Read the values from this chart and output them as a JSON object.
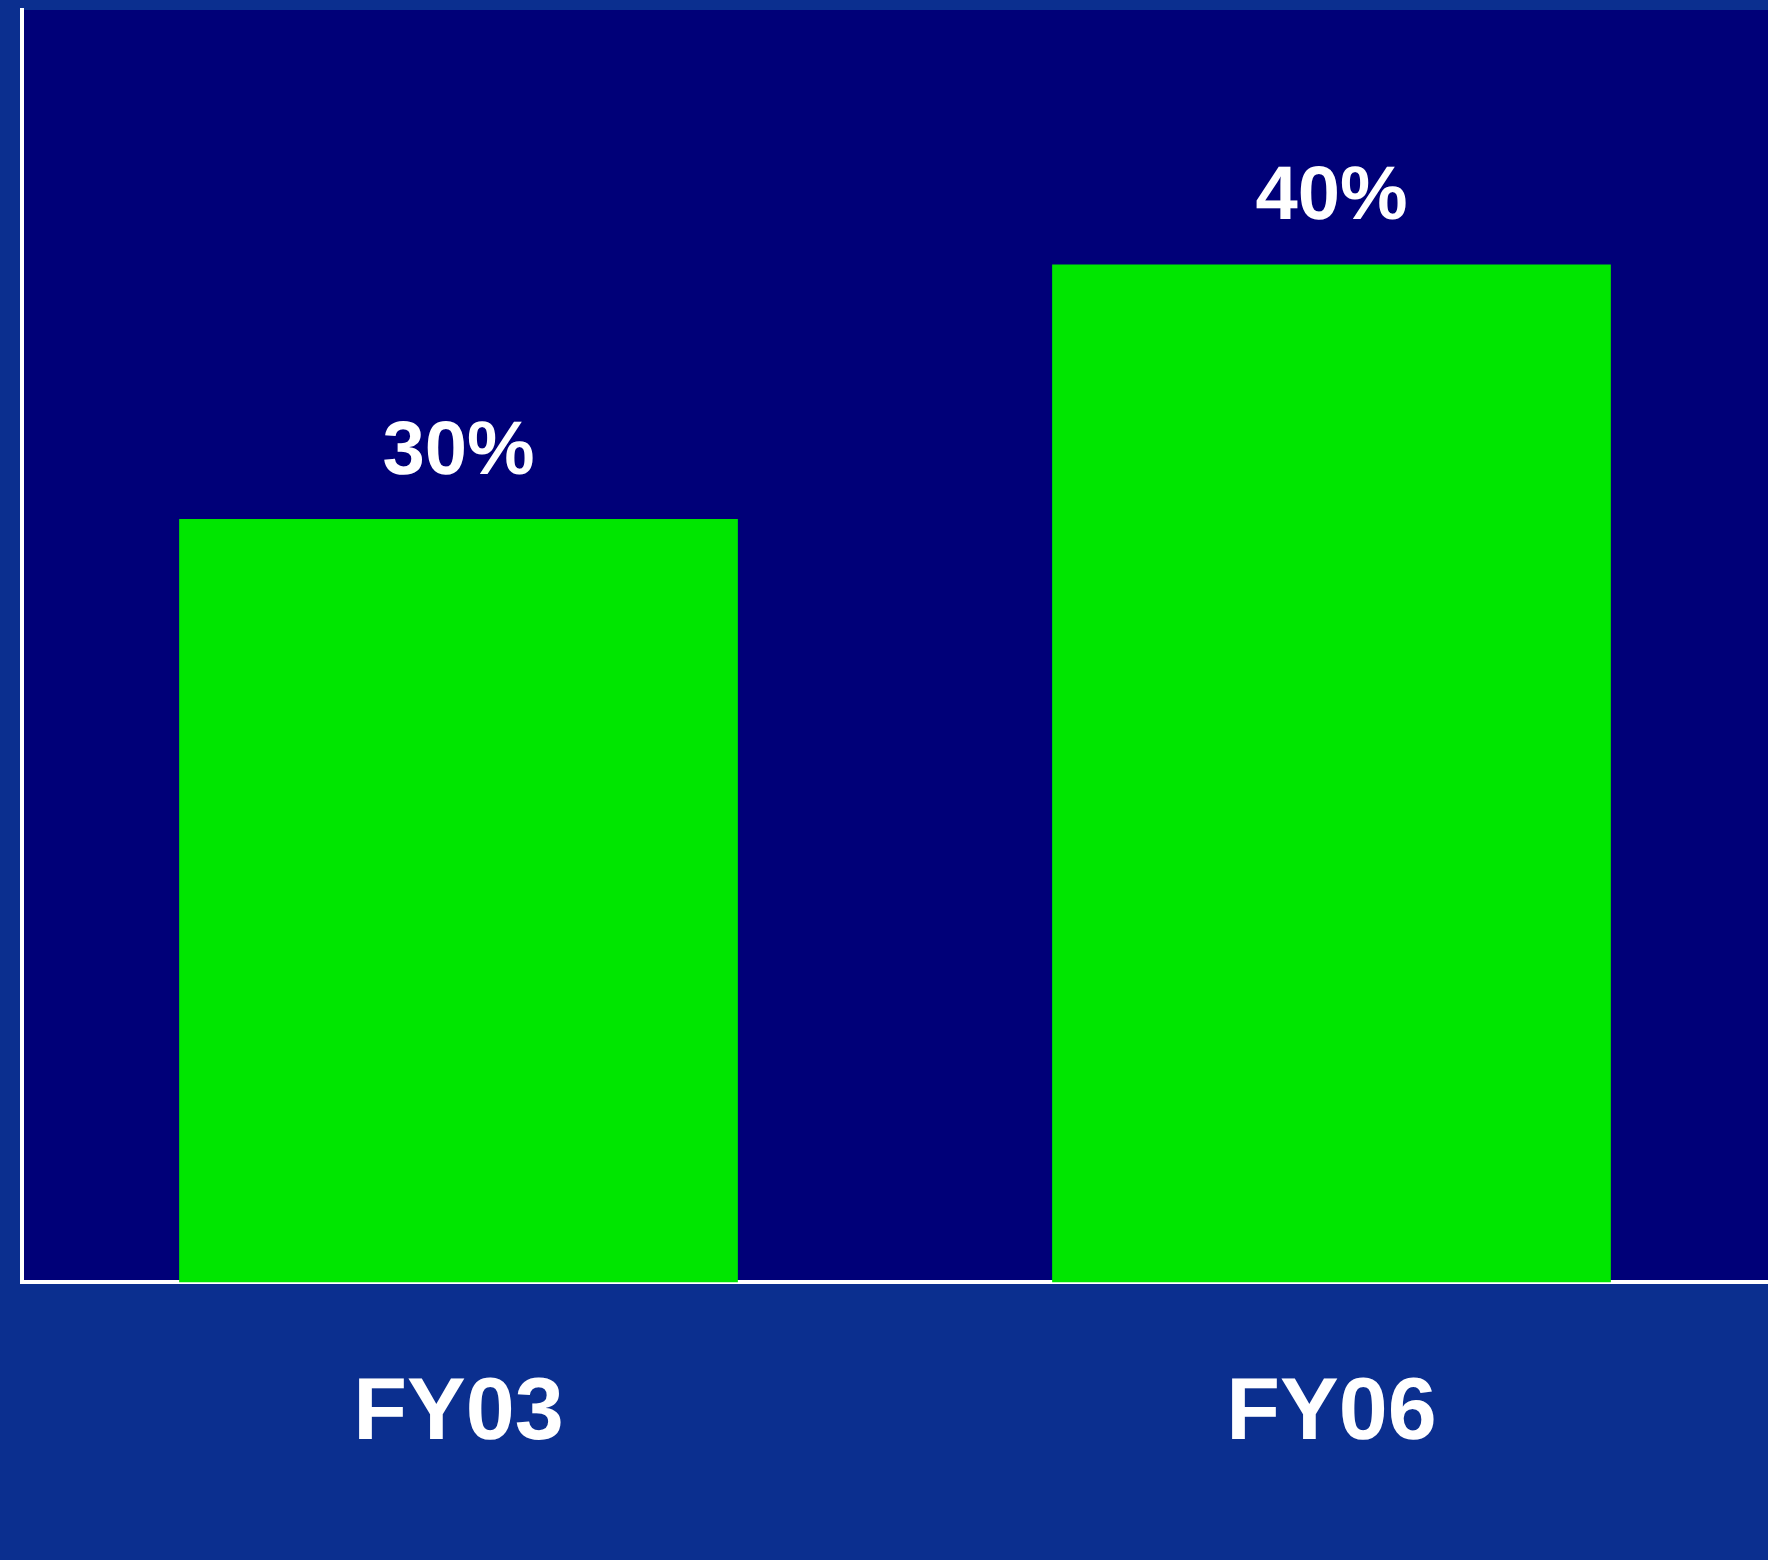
{
  "chart_data": {
    "type": "bar",
    "categories": [
      "FY03",
      "FY06"
    ],
    "values": [
      30,
      40
    ],
    "value_labels": [
      "30%",
      "40%"
    ],
    "color": "#00e600",
    "ylim": [
      0,
      50
    ],
    "grid": false,
    "legend": false
  }
}
